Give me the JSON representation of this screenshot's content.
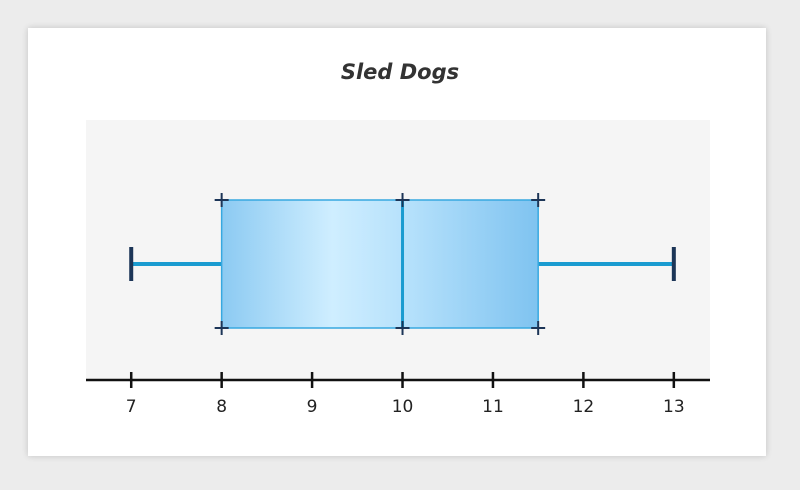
{
  "chart_data": {
    "type": "boxplot",
    "title": "Sled Dogs",
    "xlabel": "",
    "ylabel": "",
    "xlim": [
      6.5,
      13.4
    ],
    "ticks": [
      7,
      8,
      9,
      10,
      11,
      12,
      13
    ],
    "tick_labels": [
      "7",
      "8",
      "9",
      "10",
      "11",
      "12",
      "13"
    ],
    "summary": {
      "min": 7,
      "q1": 8,
      "median": 10,
      "q3": 11.5,
      "max": 13
    },
    "grid": false
  },
  "colors": {
    "plot_background": "#f5f5f5",
    "box_fill_light": "#cfeeff",
    "box_fill_dark": "#7fc3f0",
    "box_stroke": "#37a8e0",
    "median_and_whisker": "#1a9bd0",
    "markers": "#1c3557",
    "axis": "#111111"
  }
}
